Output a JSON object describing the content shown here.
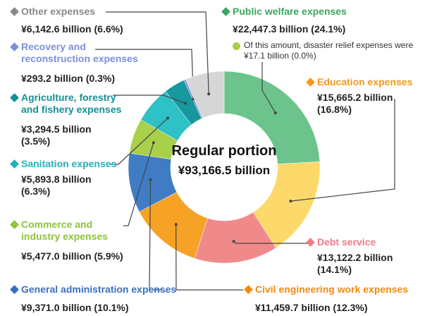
{
  "chart_data": {
    "type": "donut",
    "center_title": "Regular portion",
    "center_label": "¥93,166.5 billion",
    "categories": [
      "Public welfare expenses",
      "Education expenses",
      "Debt service",
      "Civil engineering work expenses",
      "General administration expenses",
      "Commerce and industry expenses",
      "Sanitation expenses",
      "Agriculture, forestry and fishery expenses",
      "Recovery and reconstruction expenses",
      "Other expenses"
    ],
    "values": [
      22447.3,
      15665.2,
      13122.2,
      11459.7,
      9371.0,
      5477.0,
      5893.8,
      3294.5,
      293.2,
      6142.6
    ],
    "value_labels": [
      "¥22,447.3 billion (24.1%)",
      "¥15,665.2 billion (16.8%)",
      "¥13,122.2 billion (14.1%)",
      "¥11,459.7 billion (12.3%)",
      "¥9,371.0 billion (10.1%)",
      "¥5,477.0 billion (5.9%)",
      "¥5,893.8 billion (6.3%)",
      "¥3,294.5 billion (3.5%)",
      "¥293.2 billion (0.3%)",
      "¥6,142.6 billion (6.6%)"
    ],
    "colors": [
      "#6cc48c",
      "#fcd96a",
      "#f08a8a",
      "#f6a224",
      "#3f7cc4",
      "#a8d04a",
      "#2ec1c6",
      "#17979e",
      "#7d8fdb",
      "#d6d6d6"
    ],
    "label_colors": [
      "#3aa85e",
      "#f29a1a",
      "#ee7c86",
      "#f08a10",
      "#3a6fbf",
      "#8cc43a",
      "#1fb3b8",
      "#138f96",
      "#7d8fdb",
      "#8a8a8a"
    ],
    "annotation": [
      "Of this amount, disaster relief expenses were",
      "¥17.1 billion (0.0%)"
    ]
  }
}
